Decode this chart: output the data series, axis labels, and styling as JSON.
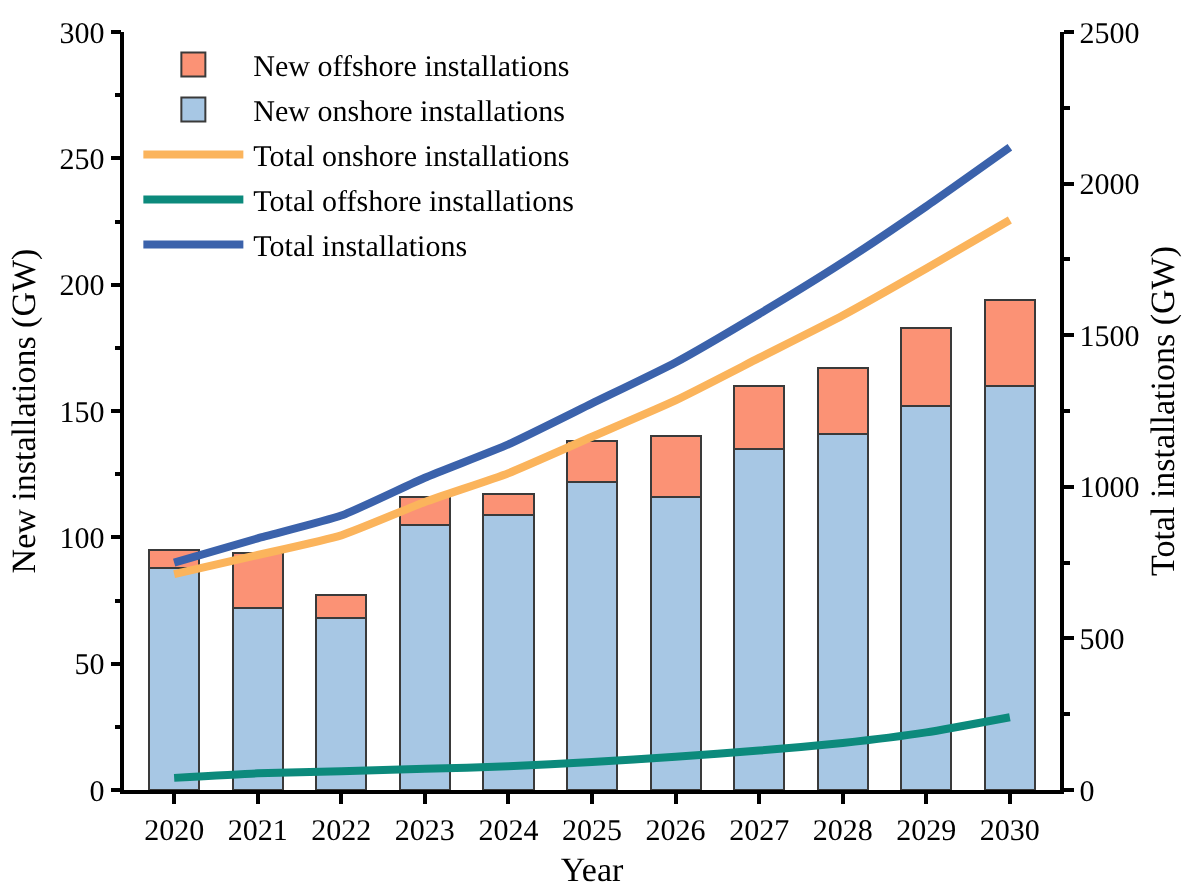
{
  "chart_data": {
    "type": "bar",
    "stacked": true,
    "xlabel": "Year",
    "ylabel": "New installations (GW)",
    "y2label": "Total installations (GW)",
    "categories": [
      "2020",
      "2021",
      "2022",
      "2023",
      "2024",
      "2025",
      "2026",
      "2027",
      "2028",
      "2029",
      "2030"
    ],
    "series": [
      {
        "name": "New onshore installations",
        "color": "#a7c7e4",
        "values": [
          88,
          72,
          68,
          105,
          109,
          122,
          116,
          135,
          141,
          152,
          160
        ]
      },
      {
        "name": "New offshore installations",
        "color": "#fb9275",
        "values": [
          7,
          22,
          9,
          11,
          8,
          16,
          24,
          25,
          26,
          31,
          34
        ]
      },
      {
        "name": "Total onshore installations",
        "type": "line",
        "axis": "y2",
        "color": "#fbb45c",
        "values": [
          712,
          775,
          840,
          950,
          1045,
          1165,
          1285,
          1425,
          1565,
          1720,
          1880
        ]
      },
      {
        "name": "Total offshore installations",
        "type": "line",
        "axis": "y2",
        "color": "#0c8a7c",
        "values": [
          40,
          55,
          62,
          70,
          78,
          92,
          110,
          130,
          155,
          190,
          240
        ]
      },
      {
        "name": "Total installations",
        "type": "line",
        "axis": "y2",
        "color": "#3b62ab",
        "values": [
          750,
          830,
          905,
          1030,
          1140,
          1275,
          1410,
          1570,
          1740,
          1925,
          2120
        ]
      }
    ],
    "ylim": [
      0,
      300
    ],
    "yticks": [
      0,
      50,
      100,
      150,
      200,
      250,
      300
    ],
    "y2lim": [
      0,
      2500
    ],
    "y2ticks": [
      0,
      500,
      1000,
      1500,
      2000,
      2500
    ],
    "legend": "top left",
    "grid": false,
    "marker": "none",
    "line_style": "solid"
  }
}
